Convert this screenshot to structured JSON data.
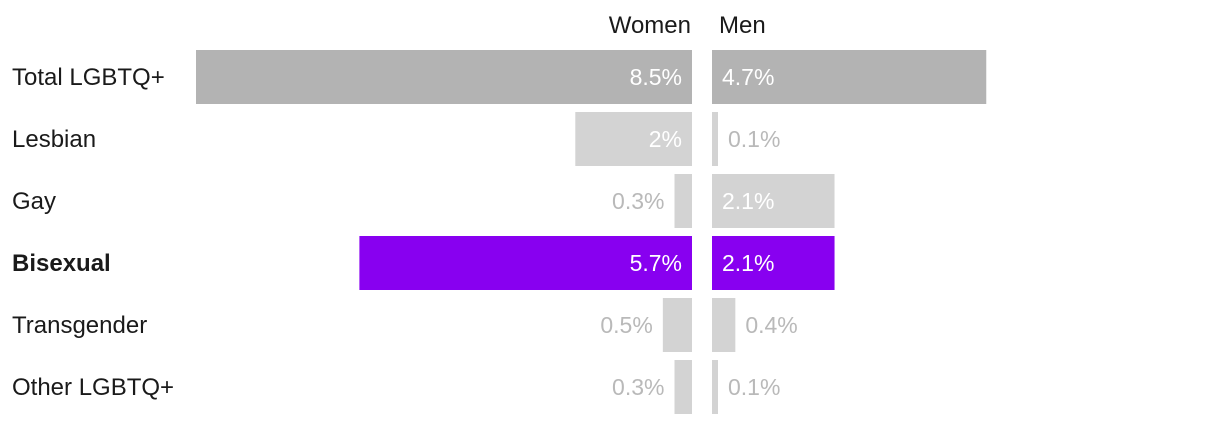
{
  "chart_data": {
    "type": "bar",
    "orientation": "horizontal",
    "layout": "diverging",
    "categories": [
      "Total LGBTQ+",
      "Lesbian",
      "Gay",
      "Bisexual",
      "Transgender",
      "Other LGBTQ+"
    ],
    "highlighted_category": "Bisexual",
    "series": [
      {
        "name": "Women",
        "values": [
          8.5,
          2,
          0.3,
          5.7,
          0.5,
          0.3
        ],
        "labels": [
          "8.5%",
          "2%",
          "0.3%",
          "5.7%",
          "0.5%",
          "0.3%"
        ]
      },
      {
        "name": "Men",
        "values": [
          4.7,
          0.1,
          2.1,
          2.1,
          0.4,
          0.1
        ],
        "labels": [
          "4.7%",
          "0.1%",
          "2.1%",
          "2.1%",
          "0.4%",
          "0.1%"
        ]
      }
    ],
    "unit": "%",
    "xlim": [
      0,
      8.5
    ],
    "grid": false,
    "legend": "none",
    "colors": {
      "total": "#b3b3b3",
      "subgroup": "#d3d3d3",
      "highlight": "#8800f0",
      "label_inside": "#ffffff",
      "label_outside": "#b9b9b9"
    }
  }
}
